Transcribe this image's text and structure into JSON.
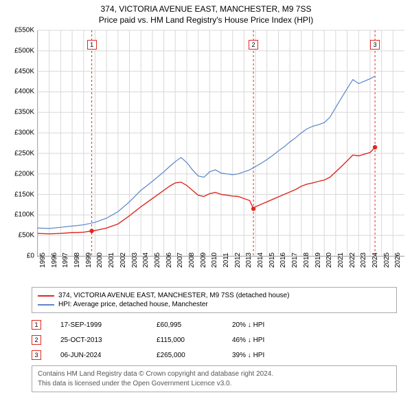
{
  "title": {
    "line1": "374, VICTORIA AVENUE EAST, MANCHESTER, M9 7SS",
    "line2": "Price paid vs. HM Land Registry's House Price Index (HPI)"
  },
  "chart": {
    "type": "line",
    "background_color": "#ffffff",
    "grid_color": "#d8d8d8",
    "axis_color": "#808080",
    "label_fontsize": 10,
    "y": {
      "min": 0,
      "max": 550000,
      "step": 50000,
      "ticks": [
        "£0",
        "£50K",
        "£100K",
        "£150K",
        "£200K",
        "£250K",
        "£300K",
        "£350K",
        "£400K",
        "£450K",
        "£500K",
        "£550K"
      ]
    },
    "x": {
      "min": 1995,
      "max": 2027,
      "ticks": [
        1995,
        1996,
        1997,
        1998,
        1999,
        2000,
        2001,
        2002,
        2003,
        2004,
        2005,
        2006,
        2007,
        2008,
        2009,
        2010,
        2011,
        2012,
        2013,
        2014,
        2015,
        2016,
        2017,
        2018,
        2019,
        2020,
        2021,
        2022,
        2023,
        2024,
        2025,
        2026
      ]
    },
    "series": [
      {
        "name": "price_paid",
        "label": "374, VICTORIA AVENUE EAST, MANCHESTER, M9 7SS (detached house)",
        "color": "#de2821",
        "line_width": 1.4,
        "points": [
          [
            1995.0,
            55000
          ],
          [
            1996.0,
            54000
          ],
          [
            1997.0,
            55000
          ],
          [
            1998.0,
            57000
          ],
          [
            1999.0,
            58000
          ],
          [
            1999.71,
            60995
          ],
          [
            2000.0,
            62000
          ],
          [
            2001.0,
            68000
          ],
          [
            2002.0,
            78000
          ],
          [
            2003.0,
            98000
          ],
          [
            2004.0,
            120000
          ],
          [
            2005.0,
            140000
          ],
          [
            2006.0,
            160000
          ],
          [
            2006.5,
            170000
          ],
          [
            2007.0,
            178000
          ],
          [
            2007.5,
            180000
          ],
          [
            2008.0,
            172000
          ],
          [
            2008.5,
            160000
          ],
          [
            2009.0,
            148000
          ],
          [
            2009.5,
            145000
          ],
          [
            2010.0,
            152000
          ],
          [
            2010.5,
            155000
          ],
          [
            2011.0,
            150000
          ],
          [
            2011.5,
            148000
          ],
          [
            2012.0,
            146000
          ],
          [
            2012.5,
            145000
          ],
          [
            2013.0,
            140000
          ],
          [
            2013.5,
            135000
          ],
          [
            2013.82,
            115000
          ],
          [
            2014.0,
            120000
          ],
          [
            2014.5,
            126000
          ],
          [
            2015.0,
            132000
          ],
          [
            2015.5,
            138000
          ],
          [
            2016.0,
            144000
          ],
          [
            2016.5,
            150000
          ],
          [
            2017.0,
            156000
          ],
          [
            2017.5,
            162000
          ],
          [
            2018.0,
            170000
          ],
          [
            2018.5,
            175000
          ],
          [
            2019.0,
            178000
          ],
          [
            2019.5,
            182000
          ],
          [
            2020.0,
            185000
          ],
          [
            2020.5,
            192000
          ],
          [
            2021.0,
            205000
          ],
          [
            2021.5,
            218000
          ],
          [
            2022.0,
            232000
          ],
          [
            2022.5,
            246000
          ],
          [
            2023.0,
            244000
          ],
          [
            2023.5,
            248000
          ],
          [
            2024.0,
            252000
          ],
          [
            2024.43,
            265000
          ]
        ]
      },
      {
        "name": "hpi",
        "label": "HPI: Average price, detached house, Manchester",
        "color": "#5b85c7",
        "line_width": 1.2,
        "points": [
          [
            1995.0,
            68000
          ],
          [
            1996.0,
            67000
          ],
          [
            1997.0,
            70000
          ],
          [
            1998.0,
            73000
          ],
          [
            1999.0,
            76000
          ],
          [
            2000.0,
            82000
          ],
          [
            2001.0,
            92000
          ],
          [
            2002.0,
            108000
          ],
          [
            2003.0,
            132000
          ],
          [
            2004.0,
            160000
          ],
          [
            2005.0,
            182000
          ],
          [
            2006.0,
            205000
          ],
          [
            2006.5,
            218000
          ],
          [
            2007.0,
            230000
          ],
          [
            2007.5,
            240000
          ],
          [
            2008.0,
            228000
          ],
          [
            2008.5,
            210000
          ],
          [
            2009.0,
            195000
          ],
          [
            2009.5,
            192000
          ],
          [
            2010.0,
            205000
          ],
          [
            2010.5,
            210000
          ],
          [
            2011.0,
            202000
          ],
          [
            2011.5,
            200000
          ],
          [
            2012.0,
            198000
          ],
          [
            2012.5,
            200000
          ],
          [
            2013.0,
            205000
          ],
          [
            2013.5,
            210000
          ],
          [
            2014.0,
            218000
          ],
          [
            2014.5,
            226000
          ],
          [
            2015.0,
            235000
          ],
          [
            2015.5,
            245000
          ],
          [
            2016.0,
            256000
          ],
          [
            2016.5,
            266000
          ],
          [
            2017.0,
            278000
          ],
          [
            2017.5,
            288000
          ],
          [
            2018.0,
            300000
          ],
          [
            2018.5,
            310000
          ],
          [
            2019.0,
            316000
          ],
          [
            2019.5,
            320000
          ],
          [
            2020.0,
            325000
          ],
          [
            2020.5,
            338000
          ],
          [
            2021.0,
            362000
          ],
          [
            2021.5,
            385000
          ],
          [
            2022.0,
            408000
          ],
          [
            2022.5,
            430000
          ],
          [
            2023.0,
            420000
          ],
          [
            2023.5,
            426000
          ],
          [
            2024.0,
            432000
          ],
          [
            2024.43,
            438000
          ]
        ]
      }
    ],
    "sale_markers": [
      {
        "n": "1",
        "year": 1999.71,
        "color": "#de2821",
        "point_y": 60995
      },
      {
        "n": "2",
        "year": 2013.82,
        "color": "#de2821",
        "point_y": 115000
      },
      {
        "n": "3",
        "year": 2024.43,
        "color": "#de2821",
        "point_y": 265000
      }
    ],
    "marker_dash": "3,3"
  },
  "legend": [
    {
      "color": "#de2821",
      "label": "374, VICTORIA AVENUE EAST, MANCHESTER, M9 7SS (detached house)"
    },
    {
      "color": "#5b85c7",
      "label": "HPI: Average price, detached house, Manchester"
    }
  ],
  "sales": [
    {
      "n": "1",
      "color": "#de2821",
      "date": "17-SEP-1999",
      "price": "£60,995",
      "pct": "20% ↓ HPI"
    },
    {
      "n": "2",
      "color": "#de2821",
      "date": "25-OCT-2013",
      "price": "£115,000",
      "pct": "46% ↓ HPI"
    },
    {
      "n": "3",
      "color": "#de2821",
      "date": "06-JUN-2024",
      "price": "£265,000",
      "pct": "39% ↓ HPI"
    }
  ],
  "attribution": {
    "line1": "Contains HM Land Registry data © Crown copyright and database right 2024.",
    "line2": "This data is licensed under the Open Government Licence v3.0."
  }
}
